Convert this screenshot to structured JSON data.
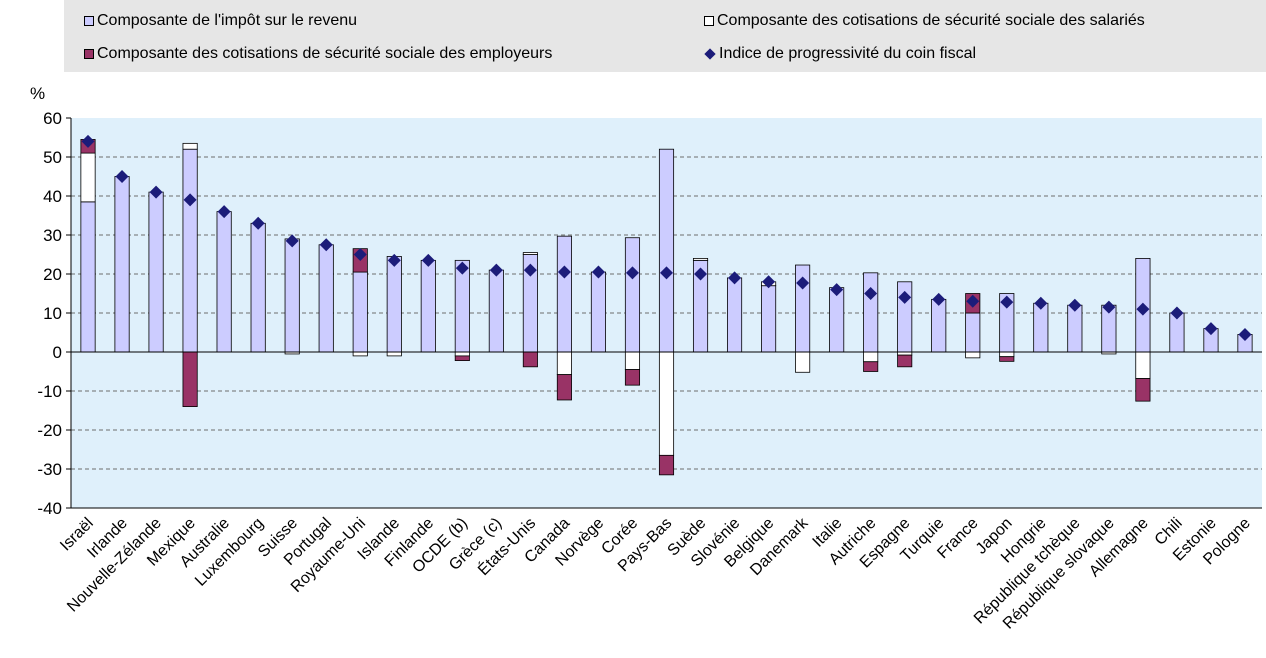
{
  "chart_data": {
    "type": "bar",
    "ylabel": "%",
    "ylim": [
      -40,
      60
    ],
    "yticks": [
      60,
      50,
      40,
      30,
      20,
      10,
      0,
      -10,
      -20,
      -30,
      -40
    ],
    "grid": true,
    "legend_position": "top",
    "categories": [
      "Israël",
      "Irlande",
      "Nouvelle-Zélande",
      "Mexique",
      "Australie",
      "Luxembourg",
      "Suisse",
      "Portugal",
      "Royaume-Uni",
      "Islande",
      "Finlande",
      "OCDE (b)",
      "Grèce (c)",
      "États-Unis",
      "Canada",
      "Norvège",
      "Corée",
      "Pays-Bas",
      "Suède",
      "Slovénie",
      "Belgique",
      "Danemark",
      "Italie",
      "Autriche",
      "Espagne",
      "Turquie",
      "France",
      "Japon",
      "Hongrie",
      "République tchèque",
      "République slovaque",
      "Allemagne",
      "Chili",
      "Estonie",
      "Pologne"
    ],
    "series": [
      {
        "name": "Composante de l'impôt sur le revenu",
        "kind": "bar",
        "color": "#ccccff",
        "values": [
          38.5,
          45,
          41,
          52,
          36,
          33,
          29,
          27.5,
          20.5,
          24.5,
          23.5,
          23.5,
          21,
          25,
          29.7,
          20.5,
          29.3,
          52,
          23.5,
          19,
          17,
          22.3,
          16.5,
          20.3,
          18,
          13.5,
          10,
          15,
          12.5,
          12,
          12,
          24,
          10,
          6,
          4.5
        ]
      },
      {
        "name": "Composante des cotisations de sécurité sociale des salariés",
        "kind": "bar",
        "color": "#ffffff",
        "values": [
          12.5,
          0,
          0,
          1.5,
          0,
          0,
          -0.5,
          0,
          -1,
          -1,
          0,
          -1,
          0,
          0.5,
          -5.8,
          0,
          -4.5,
          -26.5,
          0.5,
          0,
          1,
          -5.2,
          0,
          -2.5,
          -0.8,
          0,
          -1.5,
          -1.2,
          0,
          0,
          -0.5,
          -6.8,
          0,
          0,
          0
        ]
      },
      {
        "name": "Composante des cotisations de sécurité sociale des employeurs",
        "kind": "bar",
        "color": "#993366",
        "values": [
          3.5,
          0,
          0,
          -14,
          0,
          0,
          0,
          0,
          6,
          0,
          0,
          -1.2,
          0,
          -3.8,
          -6.5,
          0,
          -4,
          -5,
          0,
          0,
          0,
          0,
          0,
          -2.5,
          -3,
          0,
          5,
          -1.2,
          0,
          0,
          0,
          -5.8,
          0,
          0,
          0
        ]
      },
      {
        "name": "Indice de progressivité du coin fiscal",
        "kind": "marker",
        "color": "#1c1c7a",
        "values": [
          54,
          45,
          41,
          39,
          36,
          33,
          28.5,
          27.5,
          25,
          23.5,
          23.5,
          21.5,
          21,
          21,
          20.5,
          20.5,
          20.3,
          20.3,
          20,
          19,
          18,
          17.7,
          16,
          15,
          14,
          13.5,
          13,
          12.8,
          12.5,
          12,
          11.5,
          11,
          10,
          6,
          4.5
        ]
      }
    ]
  }
}
